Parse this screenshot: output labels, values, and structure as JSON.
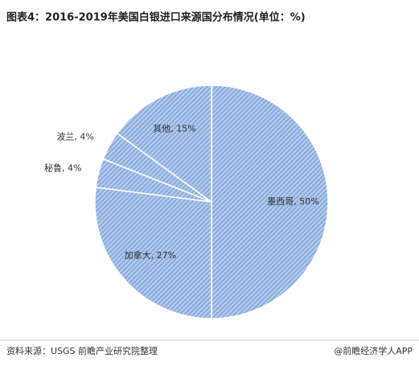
{
  "chart_data": {
    "type": "pie",
    "title": "图表4：2016-2019年美国白银进口来源国分布情况(单位：%)",
    "categories": [
      "墨西哥",
      "加拿大",
      "秘鲁",
      "波兰",
      "其他"
    ],
    "values": [
      50,
      27,
      4,
      4,
      15
    ],
    "value_labels": [
      "50%",
      "27%",
      "4%",
      "4%",
      "15%"
    ],
    "color": "#8fb0e0",
    "source": "资料来源：USGS 前瞻产业研究院整理",
    "footer": "@前瞻经济学人APP"
  }
}
